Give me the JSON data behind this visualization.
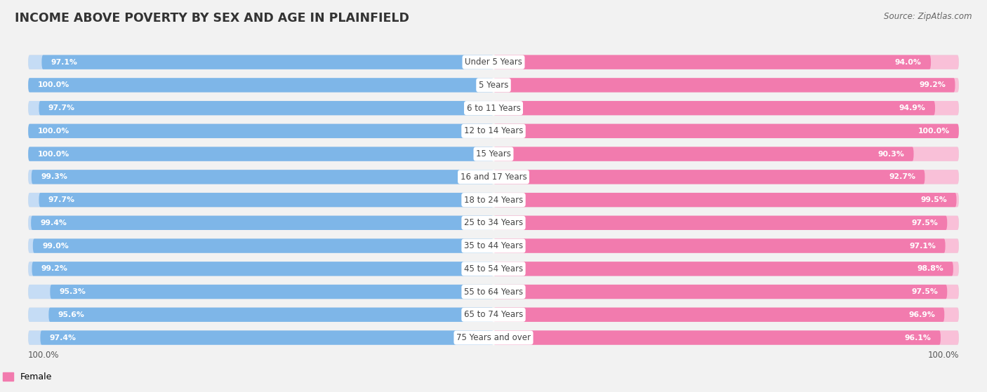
{
  "title": "INCOME ABOVE POVERTY BY SEX AND AGE IN PLAINFIELD",
  "source": "Source: ZipAtlas.com",
  "categories": [
    "Under 5 Years",
    "5 Years",
    "6 to 11 Years",
    "12 to 14 Years",
    "15 Years",
    "16 and 17 Years",
    "18 to 24 Years",
    "25 to 34 Years",
    "35 to 44 Years",
    "45 to 54 Years",
    "55 to 64 Years",
    "65 to 74 Years",
    "75 Years and over"
  ],
  "male_values": [
    97.1,
    100.0,
    97.7,
    100.0,
    100.0,
    99.3,
    97.7,
    99.4,
    99.0,
    99.2,
    95.3,
    95.6,
    97.4
  ],
  "female_values": [
    94.0,
    99.2,
    94.9,
    100.0,
    90.3,
    92.7,
    99.5,
    97.5,
    97.1,
    98.8,
    97.5,
    96.9,
    96.1
  ],
  "male_color": "#7EB6E8",
  "male_color_light": "#C5DCF5",
  "female_color": "#F27BAE",
  "female_color_light": "#F9C0D8",
  "bg_color": "#F2F2F2",
  "row_bg_color": "#E0E0E0",
  "label_bg": "#FFFFFF"
}
